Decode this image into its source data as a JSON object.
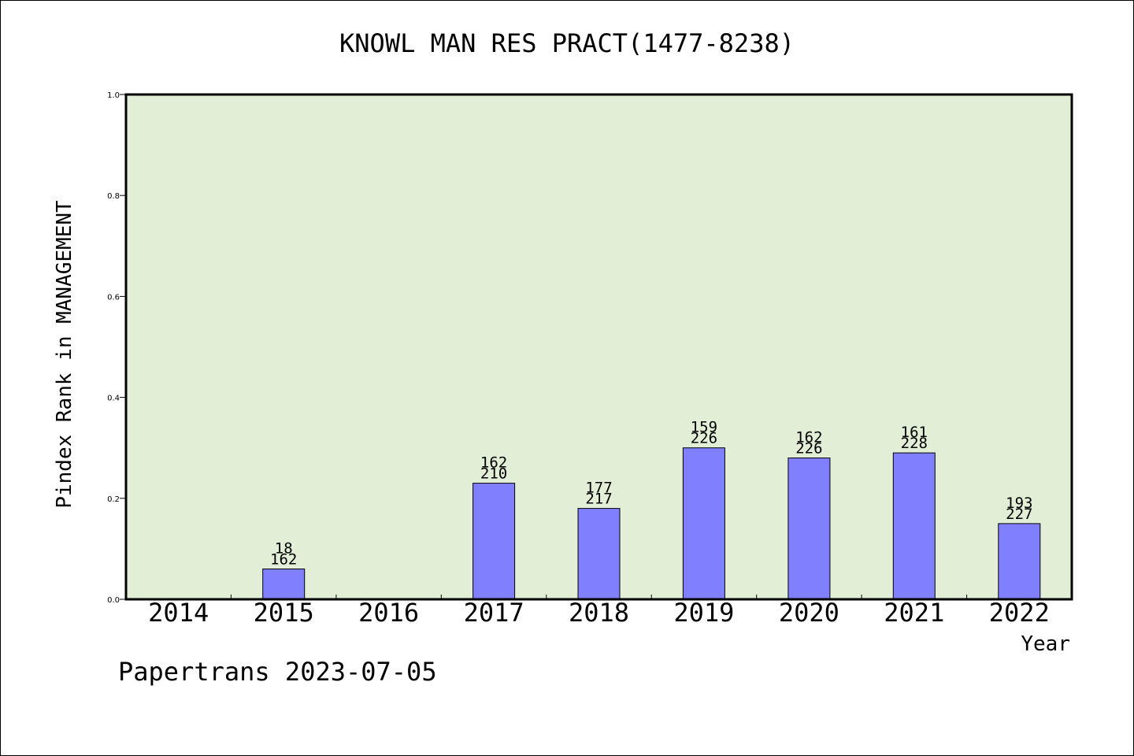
{
  "chart_data": {
    "type": "bar",
    "title": "KNOWL MAN RES PRACT(1477-8238)",
    "xlabel": "Year",
    "ylabel": "Pindex Rank in MANAGEMENT",
    "ylim": [
      0,
      1.0
    ],
    "yticks": [
      "0.0",
      "0.2",
      "0.4",
      "0.6",
      "0.8",
      "1.0"
    ],
    "categories": [
      "2014",
      "2015",
      "2016",
      "2017",
      "2018",
      "2019",
      "2020",
      "2021",
      "2022"
    ],
    "values": [
      null,
      0.06,
      null,
      0.23,
      0.18,
      0.3,
      0.28,
      0.29,
      0.15
    ],
    "labels_top": [
      "",
      "18",
      "",
      "162",
      "177",
      "159",
      "162",
      "161",
      "193"
    ],
    "labels_bottom": [
      "",
      "162",
      "",
      "210",
      "217",
      "226",
      "226",
      "228",
      "227"
    ],
    "grid": false,
    "colors": {
      "plot_bg": "#e2efd6",
      "bar": "#8080ff"
    }
  },
  "footer": "Papertrans 2023-07-05"
}
